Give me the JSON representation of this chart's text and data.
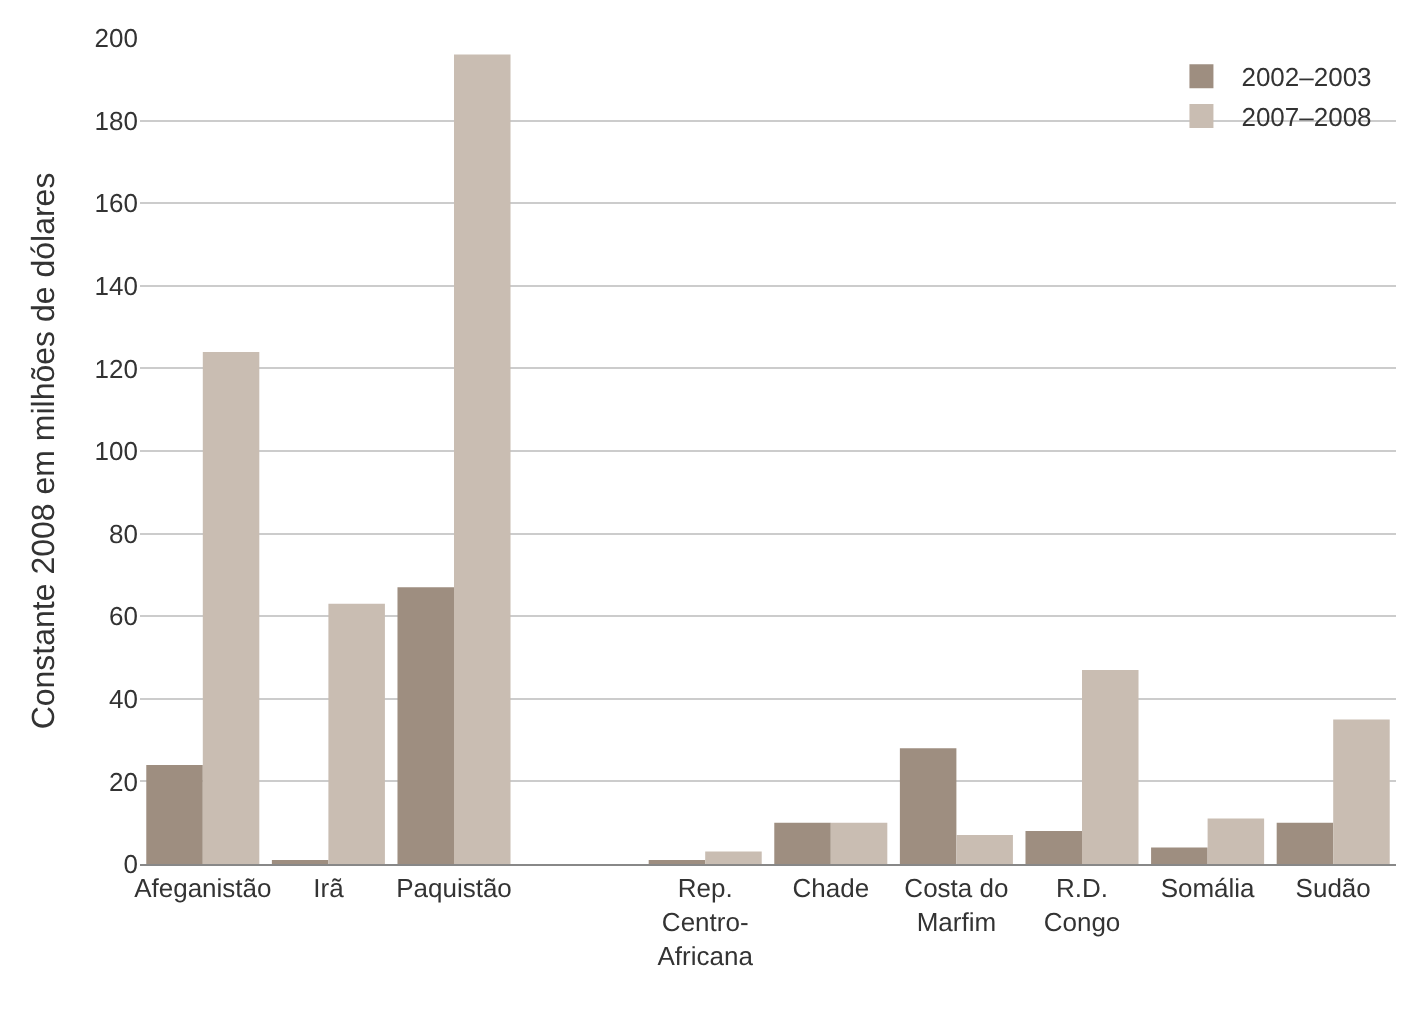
{
  "chart_data": {
    "type": "bar",
    "ylabel": "Constante 2008 em milhões de dólares",
    "categories": [
      "Afeganistão",
      "Irã",
      "Paquistão",
      null,
      "Rep.\nCentro-\nAfricana",
      "Chade",
      "Costa do\nMarfim",
      "R.D.\nCongo",
      "Somália",
      "Sudão"
    ],
    "series": [
      {
        "name": "2002–2003",
        "color": "#9e8e80",
        "values": [
          24,
          1,
          67,
          null,
          1,
          10,
          28,
          8,
          4,
          10
        ]
      },
      {
        "name": "2007–2008",
        "color": "#c9bdb2",
        "values": [
          124,
          63,
          196,
          null,
          3,
          10,
          7,
          47,
          11,
          35
        ]
      }
    ],
    "ylim": [
      0,
      200
    ],
    "yticks": [
      0,
      20,
      40,
      60,
      80,
      100,
      120,
      140,
      160,
      180,
      200
    ],
    "grid": "y",
    "legend": "top right"
  }
}
